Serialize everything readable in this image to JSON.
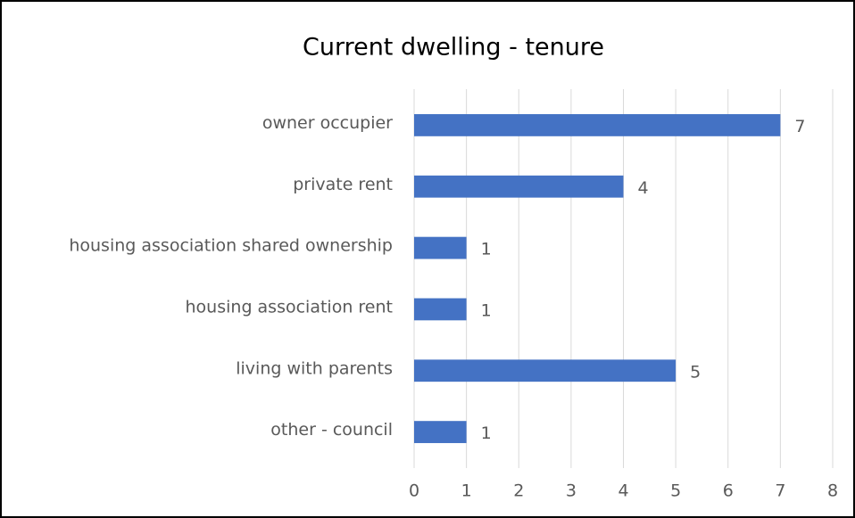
{
  "chart_data": {
    "type": "bar",
    "orientation": "horizontal",
    "title": "Current dwelling - tenure",
    "categories": [
      "owner occupier",
      "private rent",
      "housing association shared ownership",
      "housing association rent",
      "living with parents",
      "other - council"
    ],
    "values": [
      7,
      4,
      1,
      1,
      5,
      1
    ],
    "color": "#4472c4",
    "xlim": [
      0,
      8
    ],
    "xticks": [
      0,
      1,
      2,
      3,
      4,
      5,
      6,
      7,
      8
    ],
    "grid": true
  }
}
